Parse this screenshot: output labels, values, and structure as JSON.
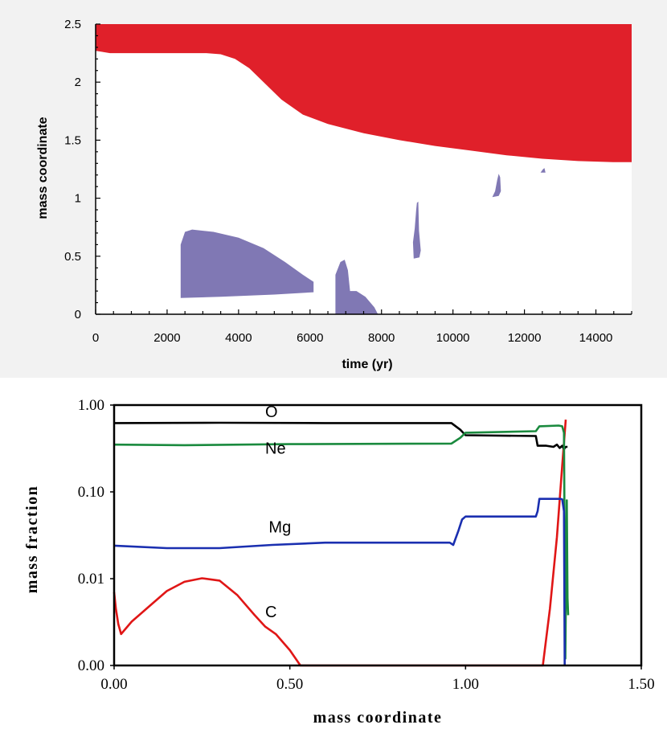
{
  "chart_data": [
    {
      "type": "area",
      "title": "",
      "xlabel": "time (yr)",
      "ylabel": "mass coordinate",
      "xlim": [
        0,
        15000
      ],
      "ylim": [
        0,
        2.5
      ],
      "xticks": [
        0,
        2000,
        4000,
        6000,
        8000,
        10000,
        12000,
        14000
      ],
      "xtick_labels": [
        "0",
        "2000",
        "4000",
        "6000",
        "8000",
        "10000",
        "12000",
        "14000"
      ],
      "yticks": [
        0,
        0.5,
        1,
        1.5,
        2,
        2.5
      ],
      "ytick_labels": [
        "0",
        "0.5",
        "1",
        "1.5",
        "2",
        "2.5"
      ],
      "colors": {
        "envelope": "#e0202a",
        "burning": "#8078b4"
      },
      "series": [
        {
          "name": "envelope-region",
          "color": "#e0202a",
          "polygon": [
            [
              0,
              2.5
            ],
            [
              15000,
              2.5
            ],
            [
              15000,
              1.31
            ],
            [
              14500,
              1.31
            ],
            [
              13500,
              1.32
            ],
            [
              12500,
              1.34
            ],
            [
              11500,
              1.37
            ],
            [
              10500,
              1.41
            ],
            [
              9500,
              1.45
            ],
            [
              8500,
              1.5
            ],
            [
              7500,
              1.56
            ],
            [
              6500,
              1.64
            ],
            [
              5800,
              1.72
            ],
            [
              5200,
              1.85
            ],
            [
              4700,
              2.0
            ],
            [
              4300,
              2.12
            ],
            [
              3900,
              2.2
            ],
            [
              3500,
              2.24
            ],
            [
              3100,
              2.25
            ],
            [
              2500,
              2.25
            ],
            [
              1500,
              2.25
            ],
            [
              400,
              2.25
            ],
            [
              0,
              2.27
            ]
          ]
        },
        {
          "name": "burning-zone-1",
          "color": "#8078b4",
          "polygon": [
            [
              2380,
              0.14
            ],
            [
              2380,
              0.6
            ],
            [
              2500,
              0.71
            ],
            [
              2700,
              0.73
            ],
            [
              3300,
              0.71
            ],
            [
              4000,
              0.66
            ],
            [
              4700,
              0.57
            ],
            [
              5300,
              0.45
            ],
            [
              5800,
              0.34
            ],
            [
              6100,
              0.28
            ],
            [
              6100,
              0.19
            ],
            [
              5000,
              0.17
            ],
            [
              3500,
              0.15
            ]
          ]
        },
        {
          "name": "burning-zone-2",
          "color": "#8078b4",
          "polygon": [
            [
              6710,
              0.0
            ],
            [
              6710,
              0.34
            ],
            [
              6850,
              0.45
            ],
            [
              6970,
              0.47
            ],
            [
              7060,
              0.38
            ],
            [
              7120,
              0.2
            ],
            [
              7300,
              0.2
            ],
            [
              7550,
              0.15
            ],
            [
              7800,
              0.06
            ],
            [
              7900,
              0.0
            ]
          ]
        },
        {
          "name": "burning-zone-3",
          "color": "#8078b4",
          "polygon": [
            [
              8900,
              0.48
            ],
            [
              8880,
              0.62
            ],
            [
              8930,
              0.74
            ],
            [
              8970,
              0.9
            ],
            [
              8990,
              0.96
            ],
            [
              9030,
              0.97
            ],
            [
              9050,
              0.72
            ],
            [
              9100,
              0.55
            ],
            [
              9060,
              0.49
            ]
          ]
        },
        {
          "name": "burning-zone-4",
          "color": "#8078b4",
          "polygon": [
            [
              11100,
              1.01
            ],
            [
              11180,
              1.06
            ],
            [
              11240,
              1.16
            ],
            [
              11280,
              1.21
            ],
            [
              11320,
              1.18
            ],
            [
              11340,
              1.06
            ],
            [
              11280,
              1.02
            ]
          ]
        },
        {
          "name": "burning-zone-5",
          "color": "#8078b4",
          "polygon": [
            [
              12450,
              1.22
            ],
            [
              12520,
              1.25
            ],
            [
              12560,
              1.26
            ],
            [
              12590,
              1.22
            ]
          ]
        }
      ]
    },
    {
      "type": "line",
      "title": "",
      "xlabel": "mass coordinate",
      "ylabel": "mass fraction",
      "xlim": [
        0,
        1.5
      ],
      "ylim": [
        0.001,
        1.0
      ],
      "yscale": "log",
      "xticks": [
        0,
        0.5,
        1.0,
        1.5
      ],
      "xtick_labels": [
        "0.00",
        "0.50",
        "1.00",
        "1.50"
      ],
      "yticks": [
        0.001,
        0.01,
        0.1,
        1.0
      ],
      "ytick_labels": [
        "0.00",
        "0.01",
        "0.10",
        "1.00"
      ],
      "series": [
        {
          "name": "O",
          "color": "#000000",
          "x": [
            0.0,
            0.3,
            0.6,
            0.96,
            0.985,
            1.0,
            1.2,
            1.205,
            1.23,
            1.25,
            1.26,
            1.268,
            1.275,
            1.28,
            1.285,
            1.29
          ],
          "y": [
            0.62,
            0.625,
            0.62,
            0.62,
            0.52,
            0.45,
            0.44,
            0.34,
            0.34,
            0.33,
            0.35,
            0.32,
            0.34,
            0.31,
            0.33,
            0.33
          ]
        },
        {
          "name": "Ne",
          "color": "#1a8a3e",
          "x": [
            0.0,
            0.2,
            0.5,
            0.96,
            0.985,
            1.0,
            1.2,
            1.21,
            1.265,
            1.275,
            1.28,
            1.284,
            1.288,
            1.29,
            1.292
          ],
          "y": [
            0.35,
            0.345,
            0.355,
            0.36,
            0.42,
            0.48,
            0.5,
            0.57,
            0.58,
            0.57,
            0.48,
            0.0012,
            0.08,
            0.006,
            0.0038
          ]
        },
        {
          "name": "Mg",
          "color": "#1a2fb0",
          "x": [
            0.0,
            0.15,
            0.3,
            0.45,
            0.6,
            0.955,
            0.965,
            0.98,
            0.99,
            1.0,
            1.2,
            1.205,
            1.21,
            1.27,
            1.275,
            1.28,
            1.282
          ],
          "y": [
            0.024,
            0.0225,
            0.0225,
            0.0245,
            0.026,
            0.026,
            0.0245,
            0.036,
            0.048,
            0.052,
            0.052,
            0.06,
            0.083,
            0.083,
            0.082,
            0.06,
            0.001
          ]
        },
        {
          "name": "C",
          "color": "#e01616",
          "x": [
            0.0,
            0.005,
            0.012,
            0.02,
            0.05,
            0.1,
            0.15,
            0.2,
            0.25,
            0.3,
            0.35,
            0.4,
            0.43,
            0.46,
            0.5,
            0.53,
            1.22,
            1.24,
            1.26,
            1.275,
            1.285
          ],
          "y": [
            0.007,
            0.0045,
            0.003,
            0.0023,
            0.0032,
            0.0048,
            0.0072,
            0.0092,
            0.0101,
            0.0095,
            0.0065,
            0.0038,
            0.0028,
            0.0023,
            0.0015,
            0.001,
            0.001,
            0.0045,
            0.03,
            0.2,
            0.68
          ]
        }
      ],
      "annotations": [
        {
          "text": "O",
          "x": 0.43,
          "y": 0.73
        },
        {
          "text": "Ne",
          "x": 0.43,
          "y": 0.275
        },
        {
          "text": "Mg",
          "x": 0.44,
          "y": 0.034
        },
        {
          "text": "C",
          "x": 0.43,
          "y": 0.0036
        }
      ]
    }
  ]
}
